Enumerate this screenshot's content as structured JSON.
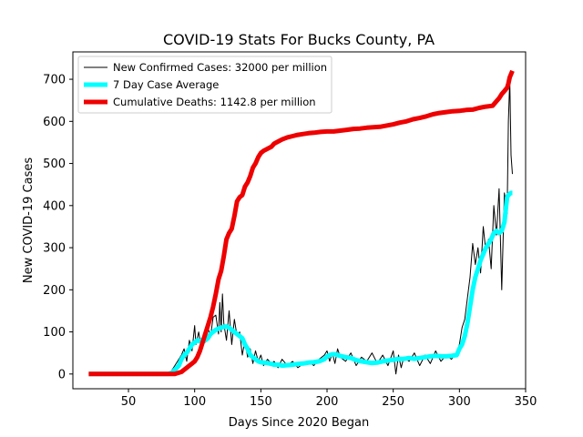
{
  "chart_data": {
    "type": "line",
    "title": "COVID-19 Stats For Bucks County, PA",
    "xlabel": "Days Since 2020 Began",
    "ylabel": "New COVID-19 Cases",
    "xlim": [
      8,
      350
    ],
    "ylim": [
      -35,
      765
    ],
    "xticks": [
      50,
      100,
      150,
      200,
      250,
      300,
      350
    ],
    "yticks": [
      0,
      100,
      200,
      300,
      400,
      500,
      600,
      700
    ],
    "grid": false,
    "legend": "top-left",
    "series": [
      {
        "name": "New Confirmed Cases: 32000 per million",
        "color": "#000000",
        "x": [
          20,
          40,
          60,
          75,
          82,
          85,
          88,
          90,
          92,
          94,
          96,
          98,
          100,
          101,
          103,
          105,
          107,
          108,
          110,
          112,
          114,
          116,
          118,
          119,
          120,
          121,
          122,
          124,
          126,
          128,
          130,
          132,
          134,
          136,
          138,
          140,
          142,
          144,
          146,
          148,
          150,
          152,
          155,
          158,
          160,
          163,
          166,
          170,
          174,
          178,
          182,
          186,
          190,
          194,
          198,
          200,
          202,
          204,
          206,
          208,
          210,
          214,
          218,
          222,
          226,
          230,
          234,
          238,
          242,
          246,
          250,
          252,
          254,
          256,
          258,
          262,
          266,
          270,
          274,
          278,
          282,
          286,
          290,
          294,
          298,
          300,
          302,
          304,
          306,
          308,
          310,
          312,
          314,
          316,
          318,
          320,
          322,
          324,
          326,
          328,
          330,
          332,
          334,
          336,
          337,
          338,
          339,
          340
        ],
        "values": [
          0,
          0,
          0,
          0,
          5,
          20,
          35,
          45,
          60,
          30,
          80,
          55,
          115,
          70,
          100,
          60,
          95,
          75,
          110,
          90,
          135,
          140,
          95,
          170,
          100,
          190,
          120,
          80,
          150,
          70,
          130,
          90,
          100,
          45,
          80,
          40,
          60,
          25,
          55,
          30,
          45,
          20,
          35,
          25,
          30,
          15,
          35,
          20,
          30,
          15,
          25,
          30,
          20,
          35,
          45,
          55,
          30,
          50,
          25,
          60,
          40,
          30,
          50,
          20,
          40,
          30,
          50,
          25,
          45,
          20,
          55,
          0,
          45,
          15,
          40,
          30,
          50,
          20,
          45,
          25,
          55,
          30,
          45,
          35,
          50,
          70,
          110,
          130,
          180,
          230,
          310,
          260,
          300,
          240,
          350,
          290,
          320,
          250,
          400,
          330,
          440,
          200,
          430,
          380,
          600,
          700,
          520,
          475
        ],
        "width": 1
      },
      {
        "name": "7 Day Case Average",
        "color": "#00ffff",
        "x": [
          20,
          40,
          60,
          80,
          83,
          85,
          88,
          90,
          92,
          94,
          96,
          98,
          100,
          102,
          104,
          106,
          108,
          110,
          112,
          114,
          116,
          118,
          120,
          122,
          124,
          126,
          128,
          130,
          132,
          134,
          136,
          138,
          140,
          142,
          144,
          146,
          148,
          150,
          152,
          155,
          158,
          160,
          163,
          166,
          170,
          174,
          178,
          182,
          186,
          190,
          194,
          198,
          200,
          202,
          204,
          206,
          208,
          210,
          214,
          218,
          222,
          226,
          230,
          234,
          238,
          242,
          246,
          250,
          254,
          258,
          262,
          266,
          270,
          274,
          278,
          282,
          286,
          290,
          294,
          298,
          300,
          302,
          304,
          306,
          308,
          310,
          312,
          314,
          316,
          318,
          320,
          322,
          324,
          326,
          328,
          330,
          332,
          334,
          335,
          336,
          337,
          338,
          339,
          340
        ],
        "values": [
          0,
          0,
          0,
          0,
          3,
          10,
          20,
          35,
          45,
          50,
          60,
          70,
          75,
          80,
          78,
          82,
          80,
          85,
          95,
          100,
          105,
          108,
          110,
          112,
          113,
          110,
          105,
          100,
          95,
          90,
          85,
          70,
          60,
          45,
          40,
          35,
          30,
          28,
          27,
          26,
          24,
          22,
          22,
          20,
          21,
          22,
          24,
          25,
          27,
          28,
          30,
          35,
          42,
          45,
          47,
          47,
          45,
          43,
          40,
          38,
          33,
          30,
          28,
          26,
          27,
          30,
          32,
          34,
          36,
          36,
          38,
          36,
          38,
          40,
          42,
          43,
          42,
          42,
          43,
          45,
          60,
          70,
          90,
          120,
          160,
          200,
          230,
          250,
          270,
          285,
          300,
          310,
          320,
          335,
          340,
          335,
          340,
          360,
          390,
          420,
          425,
          428,
          430,
          430
        ],
        "width": 5
      },
      {
        "name": "Cumulative Deaths: 1142.8 per million",
        "color": "#ee0000",
        "x": [
          20,
          40,
          60,
          80,
          85,
          88,
          90,
          92,
          94,
          96,
          98,
          100,
          102,
          104,
          106,
          108,
          110,
          112,
          114,
          116,
          118,
          120,
          122,
          124,
          126,
          128,
          130,
          132,
          134,
          136,
          138,
          140,
          142,
          144,
          146,
          148,
          150,
          152,
          155,
          158,
          160,
          163,
          166,
          170,
          174,
          178,
          182,
          186,
          190,
          195,
          200,
          205,
          210,
          215,
          220,
          225,
          230,
          235,
          240,
          245,
          250,
          255,
          260,
          265,
          270,
          275,
          280,
          285,
          290,
          295,
          300,
          305,
          310,
          315,
          320,
          325,
          330,
          332,
          334,
          336,
          337,
          338,
          339,
          340
        ],
        "values": [
          0,
          0,
          0,
          0,
          0,
          3,
          5,
          10,
          15,
          20,
          25,
          30,
          40,
          55,
          75,
          95,
          115,
          135,
          160,
          190,
          225,
          245,
          280,
          320,
          335,
          345,
          375,
          410,
          420,
          425,
          445,
          455,
          470,
          490,
          500,
          515,
          525,
          530,
          535,
          540,
          547,
          552,
          557,
          562,
          565,
          568,
          570,
          572,
          573,
          575,
          576,
          576,
          578,
          580,
          582,
          583,
          585,
          586,
          587,
          590,
          593,
          597,
          600,
          605,
          608,
          612,
          617,
          620,
          622,
          624,
          625,
          627,
          628,
          632,
          635,
          637,
          655,
          665,
          672,
          680,
          690,
          705,
          712,
          720
        ],
        "width": 5
      }
    ]
  }
}
